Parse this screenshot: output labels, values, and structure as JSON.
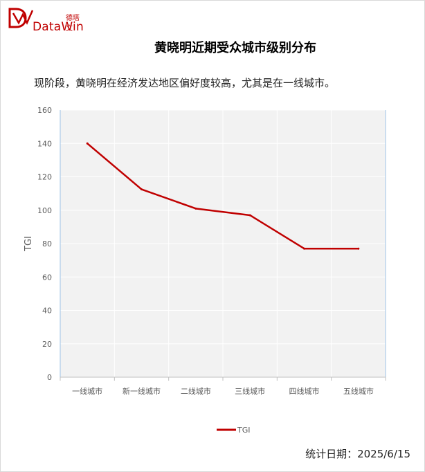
{
  "brand": {
    "name_cn": "德塔文",
    "name_en": "DataWin",
    "color": "#c00000"
  },
  "title": "黄晓明近期受众城市级别分布",
  "subtitle": "现阶段，黄晓明在经济发达地区偏好度较高，尤其是在一线城市。",
  "footer": {
    "date_label": "统计日期：2025/6/15"
  },
  "chart_data": {
    "type": "line",
    "categories": [
      "一线城市",
      "新一线城市",
      "二线城市",
      "三线城市",
      "四线城市",
      "五线城市"
    ],
    "series": [
      {
        "name": "TGI",
        "values": [
          140,
          112.5,
          101,
          97,
          77,
          77
        ],
        "color": "#c00000"
      }
    ],
    "ylabel": "TGI",
    "ylim": [
      0,
      160
    ],
    "yticks": [
      0,
      20,
      40,
      60,
      80,
      100,
      120,
      140,
      160
    ],
    "grid": true,
    "plot_background": "#f2f2f2",
    "legend": "bottom"
  }
}
